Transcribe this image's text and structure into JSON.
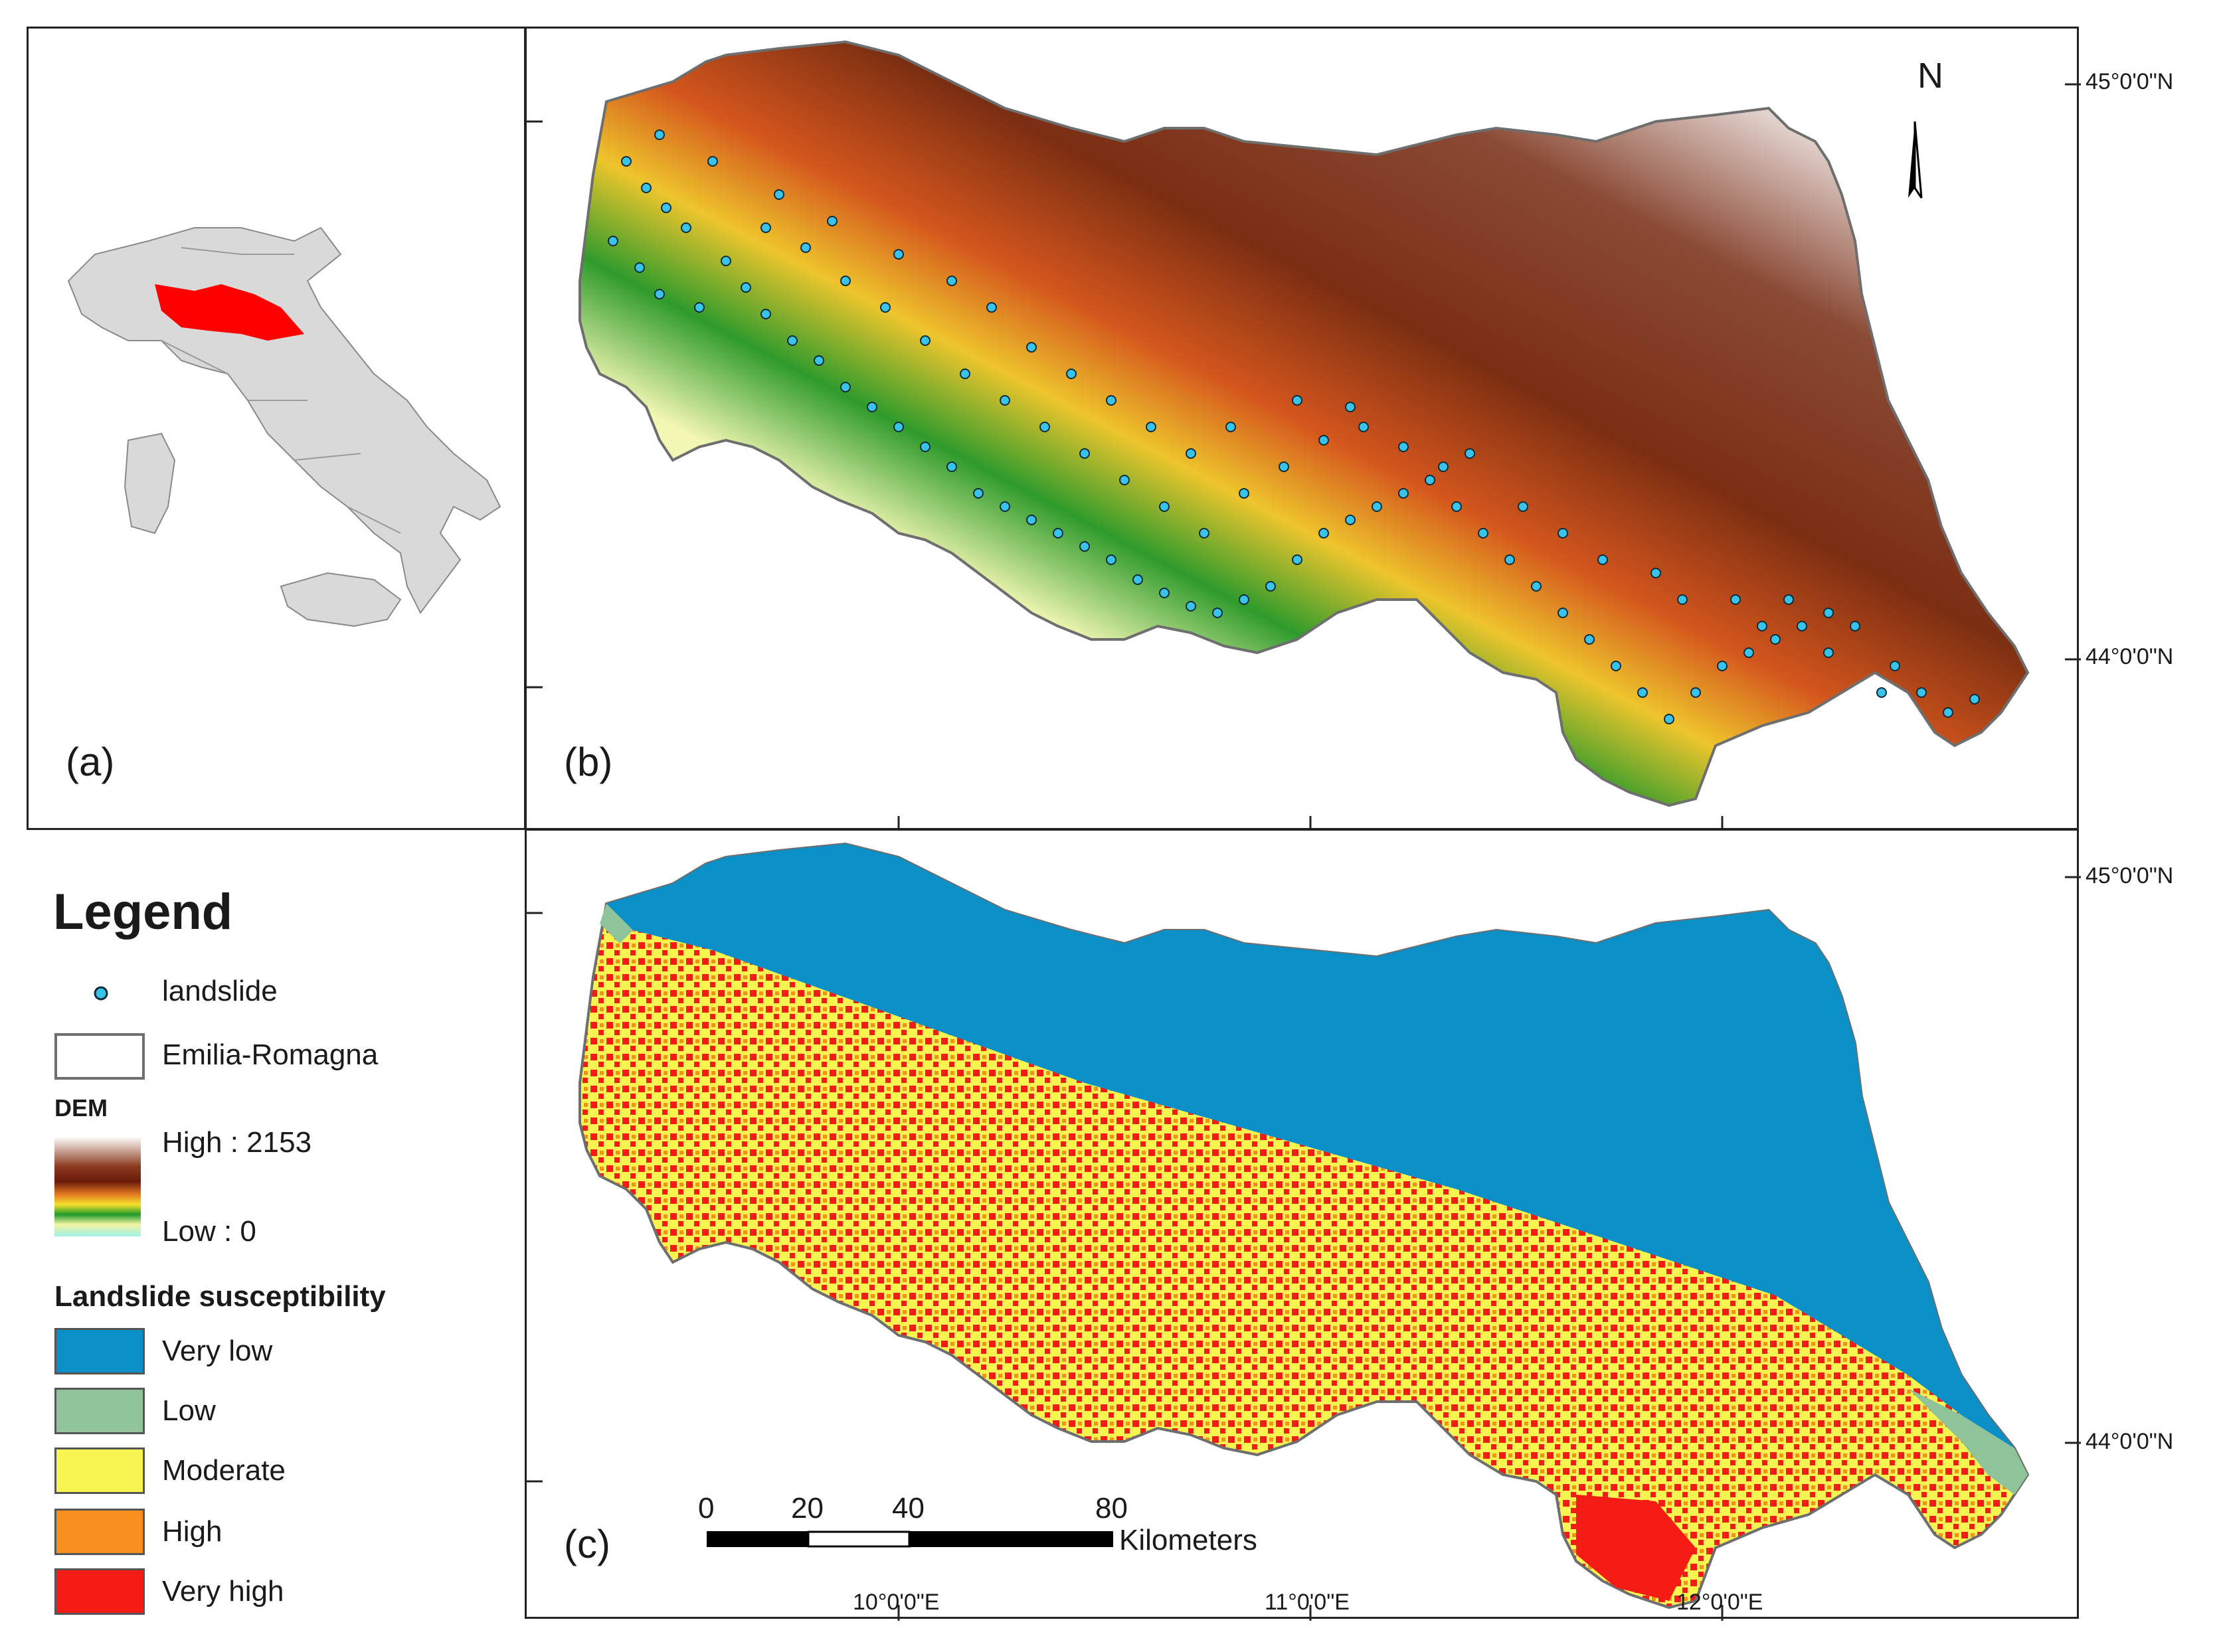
{
  "panels": {
    "a": "(a)",
    "b": "(b)",
    "c": "(c)"
  },
  "north_arrow": {
    "label": "N"
  },
  "coordinates": {
    "lat_45": "45°0'0\"N",
    "lat_44": "44°0'0\"N",
    "lon_10": "10°0'0\"E",
    "lon_11": "11°0'0\"E",
    "lon_12": "12°0'0\"E"
  },
  "legend": {
    "title": "Legend",
    "landslide": "landslide",
    "region": "Emilia-Romagna",
    "dem_title": "DEM",
    "dem_high": "High : 2153",
    "dem_low": "Low : 0",
    "susceptibility_title": "Landslide susceptibility",
    "classes": [
      {
        "label": "Very low",
        "color": "#0b8fc7"
      },
      {
        "label": "Low",
        "color": "#8fc49a"
      },
      {
        "label": "Moderate",
        "color": "#f8f550"
      },
      {
        "label": "High",
        "color": "#f98f1e"
      },
      {
        "label": "Very high",
        "color": "#f41c14"
      }
    ]
  },
  "scale_bar": {
    "ticks": [
      "0",
      "20",
      "40",
      "80"
    ],
    "unit": "Kilometers"
  },
  "colors": {
    "landslide_point": "#3ac3e8",
    "highlight_region": "#ff0000",
    "italy_fill": "#d9d9d9",
    "outline": "#6e6e6e"
  }
}
